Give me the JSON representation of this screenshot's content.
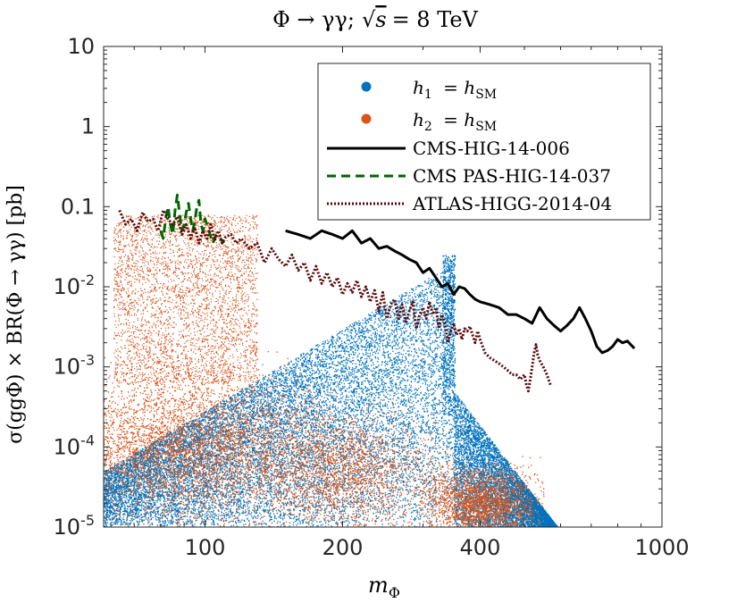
{
  "chart_data": {
    "type": "scatter",
    "title": "Φ → γγ; √s = 8 TeV",
    "title_parts": {
      "lhs": "Φ → γγ;",
      "sqrt_arg": "s",
      "rhs": "= 8 TeV"
    },
    "xlabel": "m_Φ",
    "xlabel_parts": {
      "main": "m",
      "sub": "Φ"
    },
    "ylabel": "σ(ggΦ) × BR(Φ → γγ) [pb]",
    "xscale": "log",
    "yscale": "log",
    "xlim": [
      60,
      1000
    ],
    "ylim": [
      1e-05,
      10
    ],
    "x_ticks": [
      {
        "value": 100,
        "label": "100"
      },
      {
        "value": 200,
        "label": "200"
      },
      {
        "value": 400,
        "label": "400"
      },
      {
        "value": 1000,
        "label": "1000"
      }
    ],
    "y_ticks": [
      {
        "value": 10,
        "label": "10",
        "base": "10",
        "exp": ""
      },
      {
        "value": 1,
        "label": "1",
        "base": "1",
        "exp": ""
      },
      {
        "value": 0.1,
        "label": "0.1",
        "base": "0.1",
        "exp": ""
      },
      {
        "value": 0.01,
        "label": "10^-2",
        "base": "10",
        "exp": "-2"
      },
      {
        "value": 0.001,
        "label": "10^-3",
        "base": "10",
        "exp": "-3"
      },
      {
        "value": 0.0001,
        "label": "10^-4",
        "base": "10",
        "exp": "-4"
      },
      {
        "value": 1e-05,
        "label": "10^-5",
        "base": "10",
        "exp": "-5"
      }
    ],
    "legend_position": "top-right",
    "series": [
      {
        "name": "h1 = hSM",
        "label_parts": {
          "var": "h",
          "idx": "1",
          "rhs": "h",
          "rsub": "SM"
        },
        "kind": "scatter",
        "color": "#0072BD",
        "region": {
          "x_range": [
            60,
            600
          ],
          "y_range": [
            1e-05,
            0.03
          ]
        }
      },
      {
        "name": "h2 = hSM",
        "label_parts": {
          "var": "h",
          "idx": "2",
          "rhs": "h",
          "rsub": "SM"
        },
        "kind": "scatter",
        "color": "#D95319",
        "region": {
          "x_range": [
            60,
            450
          ],
          "y_range": [
            1e-05,
            0.1
          ]
        }
      },
      {
        "name": "CMS-HIG-14-006",
        "kind": "line",
        "dash": "solid",
        "color": "#000000",
        "points": [
          [
            150,
            0.05
          ],
          [
            160,
            0.045
          ],
          [
            170,
            0.04
          ],
          [
            180,
            0.05
          ],
          [
            190,
            0.045
          ],
          [
            200,
            0.04
          ],
          [
            210,
            0.05
          ],
          [
            220,
            0.035
          ],
          [
            230,
            0.04
          ],
          [
            240,
            0.03
          ],
          [
            250,
            0.032
          ],
          [
            260,
            0.028
          ],
          [
            270,
            0.025
          ],
          [
            280,
            0.022
          ],
          [
            290,
            0.02
          ],
          [
            300,
            0.015
          ],
          [
            310,
            0.017
          ],
          [
            320,
            0.013
          ],
          [
            330,
            0.01
          ],
          [
            340,
            0.011
          ],
          [
            350,
            0.008
          ],
          [
            360,
            0.01
          ],
          [
            370,
            0.0095
          ],
          [
            380,
            0.008
          ],
          [
            390,
            0.007
          ],
          [
            400,
            0.0065
          ],
          [
            420,
            0.006
          ],
          [
            440,
            0.0055
          ],
          [
            460,
            0.0045
          ],
          [
            480,
            0.0045
          ],
          [
            500,
            0.004
          ],
          [
            520,
            0.0035
          ],
          [
            540,
            0.0055
          ],
          [
            560,
            0.004
          ],
          [
            580,
            0.0033
          ],
          [
            600,
            0.0028
          ],
          [
            620,
            0.0033
          ],
          [
            640,
            0.004
          ],
          [
            660,
            0.0055
          ],
          [
            680,
            0.004
          ],
          [
            700,
            0.0028
          ],
          [
            720,
            0.0018
          ],
          [
            740,
            0.0015
          ],
          [
            760,
            0.0016
          ],
          [
            780,
            0.0018
          ],
          [
            800,
            0.0022
          ],
          [
            820,
            0.002
          ],
          [
            840,
            0.0021
          ],
          [
            870,
            0.0017
          ]
        ]
      },
      {
        "name": "CMS PAS-HIG-14-037",
        "kind": "line",
        "dash": "dashed",
        "color": "#006400",
        "points": [
          [
            80,
            0.05
          ],
          [
            81,
            0.04
          ],
          [
            82,
            0.07
          ],
          [
            83,
            0.1
          ],
          [
            84,
            0.06
          ],
          [
            85,
            0.045
          ],
          [
            86,
            0.09
          ],
          [
            87,
            0.14
          ],
          [
            88,
            0.08
          ],
          [
            89,
            0.05
          ],
          [
            90,
            0.06
          ],
          [
            91,
            0.085
          ],
          [
            92,
            0.11
          ],
          [
            93,
            0.07
          ],
          [
            94,
            0.05
          ],
          [
            95,
            0.065
          ],
          [
            96,
            0.1
          ],
          [
            97,
            0.12
          ],
          [
            98,
            0.06
          ],
          [
            99,
            0.05
          ],
          [
            100,
            0.07
          ],
          [
            102,
            0.05
          ],
          [
            104,
            0.035
          ],
          [
            106,
            0.045
          ],
          [
            108,
            0.04
          ],
          [
            110,
            0.035
          ]
        ]
      },
      {
        "name": "ATLAS-HIGG-2014-04",
        "kind": "line",
        "dash": "dotted",
        "color": "#5A0A0A",
        "points": [
          [
            65,
            0.09
          ],
          [
            67,
            0.06
          ],
          [
            69,
            0.07
          ],
          [
            71,
            0.05
          ],
          [
            73,
            0.085
          ],
          [
            75,
            0.065
          ],
          [
            77,
            0.07
          ],
          [
            79,
            0.05
          ],
          [
            81,
            0.09
          ],
          [
            83,
            0.07
          ],
          [
            85,
            0.06
          ],
          [
            87,
            0.075
          ],
          [
            89,
            0.045
          ],
          [
            91,
            0.06
          ],
          [
            93,
            0.04
          ],
          [
            95,
            0.055
          ],
          [
            97,
            0.035
          ],
          [
            99,
            0.05
          ],
          [
            101,
            0.04
          ],
          [
            103,
            0.06
          ],
          [
            105,
            0.038
          ],
          [
            107,
            0.05
          ],
          [
            109,
            0.035
          ],
          [
            111,
            0.042
          ],
          [
            114,
            0.045
          ],
          [
            117,
            0.035
          ],
          [
            120,
            0.04
          ],
          [
            125,
            0.03
          ],
          [
            130,
            0.035
          ],
          [
            135,
            0.02
          ],
          [
            140,
            0.03
          ],
          [
            145,
            0.022
          ],
          [
            150,
            0.018
          ],
          [
            155,
            0.025
          ],
          [
            160,
            0.016
          ],
          [
            165,
            0.02
          ],
          [
            170,
            0.012
          ],
          [
            175,
            0.018
          ],
          [
            180,
            0.011
          ],
          [
            185,
            0.015
          ],
          [
            190,
            0.01
          ],
          [
            195,
            0.013
          ],
          [
            200,
            0.008
          ],
          [
            205,
            0.011
          ],
          [
            210,
            0.0085
          ],
          [
            215,
            0.012
          ],
          [
            220,
            0.0075
          ],
          [
            225,
            0.01
          ],
          [
            230,
            0.0065
          ],
          [
            235,
            0.009
          ],
          [
            240,
            0.005
          ],
          [
            245,
            0.0085
          ],
          [
            250,
            0.004
          ],
          [
            255,
            0.006
          ],
          [
            260,
            0.007
          ],
          [
            265,
            0.004
          ],
          [
            270,
            0.006
          ],
          [
            275,
            0.0035
          ],
          [
            280,
            0.005
          ],
          [
            285,
            0.0065
          ],
          [
            290,
            0.003
          ],
          [
            295,
            0.0045
          ],
          [
            300,
            0.0055
          ],
          [
            305,
            0.004
          ],
          [
            310,
            0.0065
          ],
          [
            315,
            0.0045
          ],
          [
            320,
            0.0055
          ],
          [
            325,
            0.003
          ],
          [
            330,
            0.0045
          ],
          [
            335,
            0.0035
          ],
          [
            340,
            0.002
          ],
          [
            345,
            0.0028
          ],
          [
            350,
            0.0035
          ],
          [
            355,
            0.0025
          ],
          [
            360,
            0.003
          ],
          [
            365,
            0.0022
          ],
          [
            370,
            0.003
          ],
          [
            375,
            0.0028
          ],
          [
            380,
            0.0032
          ],
          [
            385,
            0.0025
          ],
          [
            390,
            0.002
          ],
          [
            395,
            0.0028
          ],
          [
            400,
            0.0022
          ],
          [
            410,
            0.0015
          ],
          [
            420,
            0.0013
          ],
          [
            430,
            0.0012
          ],
          [
            440,
            0.0011
          ],
          [
            450,
            0.001
          ],
          [
            460,
            0.0009
          ],
          [
            470,
            0.0008
          ],
          [
            480,
            0.0008
          ],
          [
            490,
            0.0007
          ],
          [
            500,
            0.0008
          ],
          [
            505,
            0.0006
          ],
          [
            510,
            0.0005
          ],
          [
            515,
            0.0007
          ],
          [
            520,
            0.001
          ],
          [
            525,
            0.0015
          ],
          [
            530,
            0.0019
          ],
          [
            535,
            0.0014
          ],
          [
            540,
            0.0012
          ],
          [
            550,
            0.001
          ],
          [
            560,
            0.0008
          ],
          [
            570,
            0.0006
          ]
        ]
      }
    ]
  }
}
